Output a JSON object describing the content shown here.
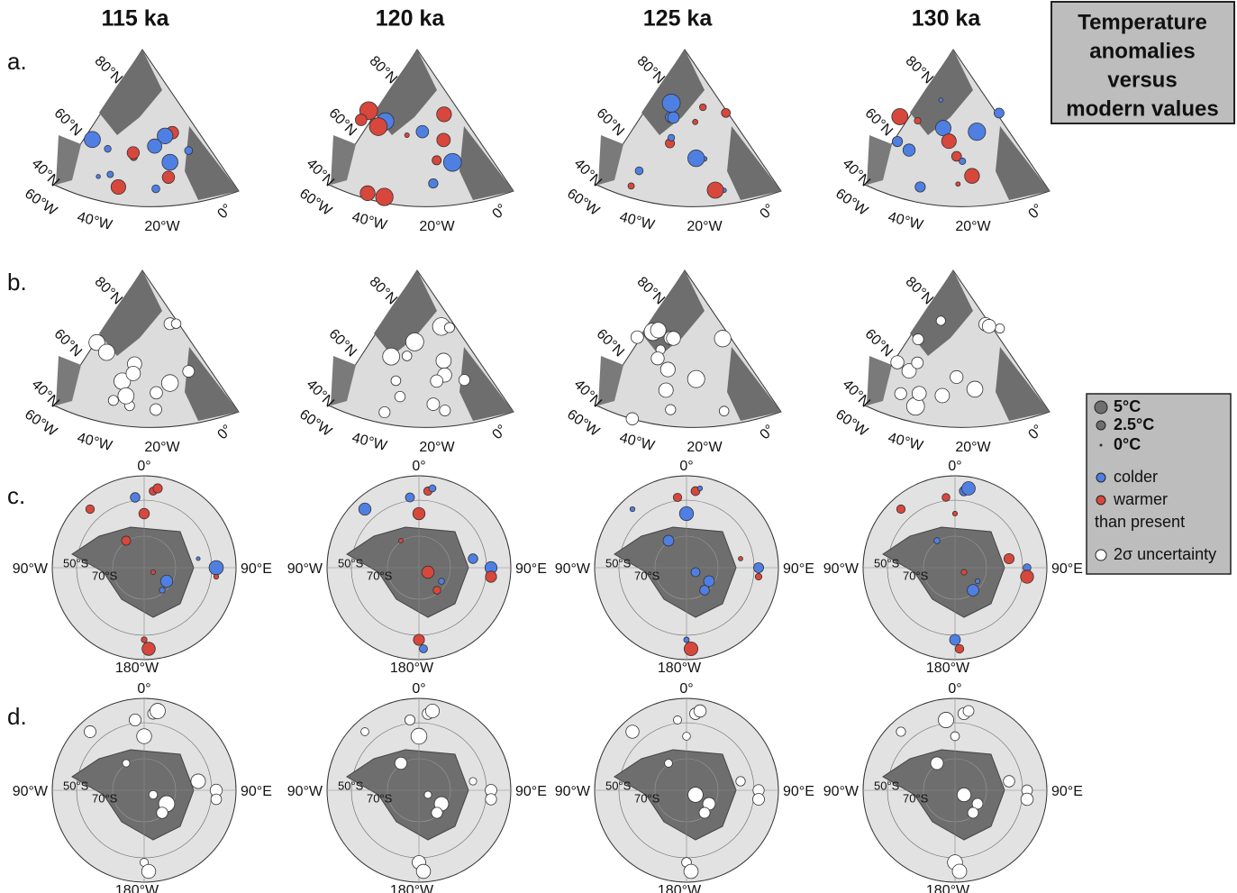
{
  "columns": [
    "115 ka",
    "120 ka",
    "125 ka",
    "130 ka"
  ],
  "rows": [
    "a.",
    "b.",
    "c.",
    "d."
  ],
  "north_labels": {
    "lat": [
      "80°N",
      "60°N",
      "40°N"
    ],
    "lon": [
      "60°W",
      "40°W",
      "20°W",
      "0°"
    ]
  },
  "south_labels": {
    "top": "0°",
    "left": "90°W",
    "right": "90°E",
    "bottom": "180°W",
    "lat": [
      "50°S",
      "70°S"
    ]
  },
  "title_box": [
    "Temperature",
    "anomalies",
    "versus",
    "modern values"
  ],
  "legend": {
    "sizes": [
      "5°C",
      "2.5°C",
      "0°C"
    ],
    "colors": [
      "colder",
      "warmer"
    ],
    "note": "than present",
    "uncertainty": "2σ uncertainty"
  }
}
